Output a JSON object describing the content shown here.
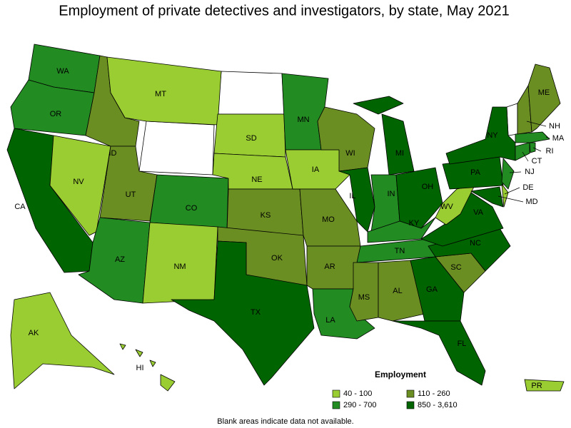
{
  "title": "Employment of private detectives and investigators, by state, May 2021",
  "legend": {
    "title": "Employment",
    "items": [
      {
        "label": "40 - 100",
        "color": "#9acd32"
      },
      {
        "label": "110 - 260",
        "color": "#6b8e23"
      },
      {
        "label": "290 - 700",
        "color": "#228b22"
      },
      {
        "label": "850 - 3,610",
        "color": "#006400"
      }
    ]
  },
  "states": [
    {
      "label": "WA",
      "color": "#228b22"
    },
    {
      "label": "OR",
      "color": "#228b22"
    },
    {
      "label": "CA",
      "color": "#006400"
    },
    {
      "label": "NV",
      "color": "#9acd32"
    },
    {
      "label": "ID",
      "color": "#6b8e23"
    },
    {
      "label": "MT",
      "color": "#9acd32"
    },
    {
      "label": "UT",
      "color": "#6b8e23"
    },
    {
      "label": "CO",
      "color": "#228b22"
    },
    {
      "label": "AZ",
      "color": "#228b22"
    },
    {
      "label": "NM",
      "color": "#9acd32"
    },
    {
      "label": "SD",
      "color": "#9acd32"
    },
    {
      "label": "NE",
      "color": "#9acd32"
    },
    {
      "label": "KS",
      "color": "#6b8e23"
    },
    {
      "label": "OK",
      "color": "#6b8e23"
    },
    {
      "label": "TX",
      "color": "#006400"
    },
    {
      "label": "MN",
      "color": "#228b22"
    },
    {
      "label": "IA",
      "color": "#9acd32"
    },
    {
      "label": "MO",
      "color": "#6b8e23"
    },
    {
      "label": "AR",
      "color": "#6b8e23"
    },
    {
      "label": "LA",
      "color": "#228b22"
    },
    {
      "label": "WI",
      "color": "#6b8e23"
    },
    {
      "label": "IL",
      "color": "#006400"
    },
    {
      "label": "MI",
      "color": "#006400"
    },
    {
      "label": "IN",
      "color": "#228b22"
    },
    {
      "label": "OH",
      "color": "#006400"
    },
    {
      "label": "KY",
      "color": "#228b22"
    },
    {
      "label": "TN",
      "color": "#228b22"
    },
    {
      "label": "MS",
      "color": "#6b8e23"
    },
    {
      "label": "AL",
      "color": "#6b8e23"
    },
    {
      "label": "GA",
      "color": "#006400"
    },
    {
      "label": "FL",
      "color": "#006400"
    },
    {
      "label": "SC",
      "color": "#6b8e23"
    },
    {
      "label": "NC",
      "color": "#006400"
    },
    {
      "label": "VA",
      "color": "#006400"
    },
    {
      "label": "WV",
      "color": "#9acd32"
    },
    {
      "label": "PA",
      "color": "#006400"
    },
    {
      "label": "NY",
      "color": "#006400"
    },
    {
      "label": "MD",
      "color": "#006400"
    },
    {
      "label": "DE",
      "color": "#9acd32"
    },
    {
      "label": "NJ",
      "color": "#228b22"
    },
    {
      "label": "CT",
      "color": "#228b22"
    },
    {
      "label": "RI",
      "color": "#228b22"
    },
    {
      "label": "MA",
      "color": "#228b22"
    },
    {
      "label": "NH",
      "color": "#6b8e23"
    },
    {
      "label": "ME",
      "color": "#6b8e23"
    },
    {
      "label": "AK",
      "color": "#9acd32"
    },
    {
      "label": "HI",
      "color": "#9acd32"
    },
    {
      "label": "PR",
      "color": "#9acd32"
    }
  ],
  "note": "Blank areas indicate data not available."
}
